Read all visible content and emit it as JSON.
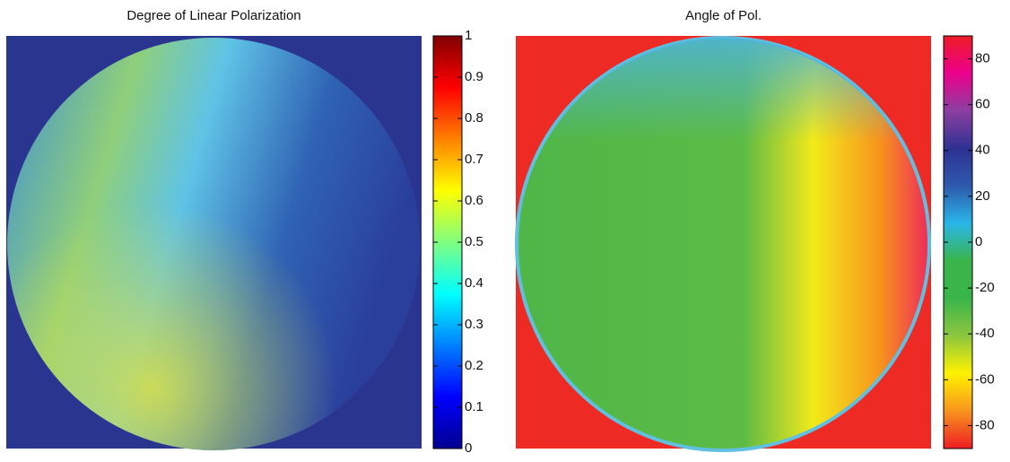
{
  "chart_data": [
    {
      "type": "image",
      "title": "Degree of Linear Polarization",
      "colorbar": {
        "lim": [
          0,
          1
        ],
        "ticks": [
          0,
          0.1,
          0.2,
          0.3,
          0.4,
          0.5,
          0.6,
          0.7,
          0.8,
          0.9,
          1
        ],
        "colormap": [
          "#00008f",
          "#0000ff",
          "#0080ff",
          "#00ffff",
          "#80ff80",
          "#ffff00",
          "#ff8000",
          "#ff0000",
          "#800000"
        ]
      }
    },
    {
      "type": "image",
      "title": "Angle of Pol.",
      "colorbar": {
        "lim": [
          -90,
          90
        ],
        "ticks": [
          -80,
          -60,
          -40,
          -20,
          0,
          20,
          40,
          60,
          80
        ],
        "colormap": [
          "#ee1c25",
          "#f7941d",
          "#fff200",
          "#8dc63f",
          "#39b54a",
          "#39b54a",
          "#29b6e8",
          "#2e5aac",
          "#2e3192",
          "#8b3fa0",
          "#ec008c",
          "#ee1c25"
        ]
      }
    }
  ]
}
